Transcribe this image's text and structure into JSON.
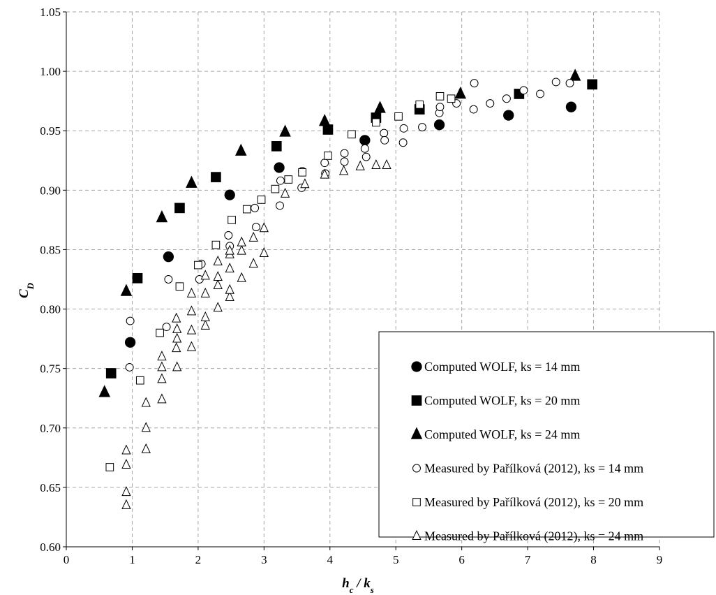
{
  "chart_data": {
    "type": "scatter",
    "xlabel": "h_c / k_s",
    "ylabel": "C_D",
    "xlim": [
      0,
      9
    ],
    "ylim": [
      0.6,
      1.05
    ],
    "x_ticks": [
      "0",
      "1",
      "2",
      "3",
      "4",
      "5",
      "6",
      "7",
      "8",
      "9"
    ],
    "y_ticks": [
      "0.60",
      "0.65",
      "0.70",
      "0.75",
      "0.80",
      "0.85",
      "0.90",
      "0.95",
      "1.00",
      "1.05"
    ],
    "grid": true,
    "legend_position": "bottom-right",
    "series": [
      {
        "name": "Computed WOLF, ks = 14 mm",
        "marker": "circle",
        "filled": true,
        "points": [
          [
            0.97,
            0.772
          ],
          [
            1.55,
            0.844
          ],
          [
            2.48,
            0.896
          ],
          [
            3.23,
            0.919
          ],
          [
            4.53,
            0.942
          ],
          [
            5.66,
            0.955
          ],
          [
            6.71,
            0.963
          ],
          [
            7.66,
            0.97
          ]
        ]
      },
      {
        "name": "Computed WOLF, ks = 20 mm",
        "marker": "square",
        "filled": true,
        "points": [
          [
            0.68,
            0.746
          ],
          [
            1.08,
            0.826
          ],
          [
            1.72,
            0.885
          ],
          [
            2.27,
            0.911
          ],
          [
            3.19,
            0.937
          ],
          [
            3.97,
            0.951
          ],
          [
            4.7,
            0.961
          ],
          [
            5.36,
            0.968
          ],
          [
            6.87,
            0.981
          ],
          [
            7.98,
            0.989
          ]
        ]
      },
      {
        "name": "Computed WOLF, ks = 24 mm",
        "marker": "triangle",
        "filled": true,
        "points": [
          [
            0.58,
            0.73
          ],
          [
            0.91,
            0.815
          ],
          [
            1.45,
            0.877
          ],
          [
            1.9,
            0.906
          ],
          [
            2.65,
            0.933
          ],
          [
            3.32,
            0.949
          ],
          [
            3.92,
            0.958
          ],
          [
            4.76,
            0.969
          ],
          [
            5.98,
            0.981
          ],
          [
            7.72,
            0.996
          ]
        ]
      },
      {
        "name": "Measured by Pařílková (2012), ks = 14 mm",
        "marker": "circle",
        "filled": false,
        "points": [
          [
            0.97,
            0.79
          ],
          [
            0.96,
            0.751
          ],
          [
            1.52,
            0.785
          ],
          [
            1.55,
            0.825
          ],
          [
            2.02,
            0.825
          ],
          [
            2.05,
            0.838
          ],
          [
            2.46,
            0.862
          ],
          [
            2.48,
            0.853
          ],
          [
            2.88,
            0.869
          ],
          [
            2.86,
            0.885
          ],
          [
            3.24,
            0.887
          ],
          [
            3.25,
            0.908
          ],
          [
            3.57,
            0.902
          ],
          [
            3.58,
            0.916
          ],
          [
            3.92,
            0.923
          ],
          [
            3.93,
            0.914
          ],
          [
            4.22,
            0.924
          ],
          [
            4.22,
            0.931
          ],
          [
            4.53,
            0.935
          ],
          [
            4.55,
            0.928
          ],
          [
            4.82,
            0.948
          ],
          [
            4.83,
            0.942
          ],
          [
            5.11,
            0.94
          ],
          [
            5.12,
            0.952
          ],
          [
            5.4,
            0.953
          ],
          [
            5.66,
            0.965
          ],
          [
            5.67,
            0.97
          ],
          [
            5.92,
            0.973
          ],
          [
            6.18,
            0.968
          ],
          [
            6.19,
            0.99
          ],
          [
            6.43,
            0.973
          ],
          [
            6.68,
            0.977
          ],
          [
            6.94,
            0.984
          ],
          [
            7.19,
            0.981
          ],
          [
            7.43,
            0.991
          ],
          [
            7.64,
            0.99
          ]
        ]
      },
      {
        "name": "Measured by Pařílková (2012), ks = 20 mm",
        "marker": "square",
        "filled": false,
        "points": [
          [
            0.66,
            0.667
          ],
          [
            1.12,
            0.74
          ],
          [
            1.42,
            0.78
          ],
          [
            1.72,
            0.819
          ],
          [
            2.0,
            0.837
          ],
          [
            2.27,
            0.854
          ],
          [
            2.51,
            0.875
          ],
          [
            2.74,
            0.884
          ],
          [
            2.96,
            0.892
          ],
          [
            3.17,
            0.901
          ],
          [
            3.37,
            0.909
          ],
          [
            3.58,
            0.915
          ],
          [
            3.97,
            0.929
          ],
          [
            4.33,
            0.947
          ],
          [
            4.7,
            0.957
          ],
          [
            5.04,
            0.962
          ],
          [
            5.36,
            0.972
          ],
          [
            5.67,
            0.979
          ],
          [
            5.84,
            0.977
          ]
        ]
      },
      {
        "name": "Measured by Pařílková (2012), ks = 24 mm",
        "marker": "triangle",
        "filled": false,
        "points": [
          [
            0.91,
            0.635
          ],
          [
            0.91,
            0.646
          ],
          [
            0.91,
            0.669
          ],
          [
            0.91,
            0.681
          ],
          [
            1.21,
            0.682
          ],
          [
            1.21,
            0.7
          ],
          [
            1.21,
            0.721
          ],
          [
            1.45,
            0.724
          ],
          [
            1.45,
            0.741
          ],
          [
            1.45,
            0.751
          ],
          [
            1.45,
            0.76
          ],
          [
            1.68,
            0.751
          ],
          [
            1.67,
            0.767
          ],
          [
            1.68,
            0.775
          ],
          [
            1.68,
            0.783
          ],
          [
            1.67,
            0.792
          ],
          [
            1.9,
            0.768
          ],
          [
            1.9,
            0.782
          ],
          [
            1.9,
            0.798
          ],
          [
            1.9,
            0.813
          ],
          [
            2.11,
            0.786
          ],
          [
            2.11,
            0.793
          ],
          [
            2.11,
            0.813
          ],
          [
            2.11,
            0.828
          ],
          [
            2.3,
            0.801
          ],
          [
            2.3,
            0.82
          ],
          [
            2.3,
            0.827
          ],
          [
            2.3,
            0.84
          ],
          [
            2.48,
            0.81
          ],
          [
            2.48,
            0.816
          ],
          [
            2.48,
            0.834
          ],
          [
            2.48,
            0.846
          ],
          [
            2.48,
            0.849
          ],
          [
            2.66,
            0.826
          ],
          [
            2.66,
            0.849
          ],
          [
            2.66,
            0.856
          ],
          [
            2.84,
            0.838
          ],
          [
            2.84,
            0.86
          ],
          [
            3.0,
            0.847
          ],
          [
            3.0,
            0.868
          ],
          [
            3.32,
            0.897
          ],
          [
            3.62,
            0.905
          ],
          [
            3.92,
            0.913
          ],
          [
            4.21,
            0.916
          ],
          [
            4.46,
            0.92
          ],
          [
            4.7,
            0.921
          ],
          [
            4.86,
            0.921
          ]
        ]
      }
    ]
  }
}
